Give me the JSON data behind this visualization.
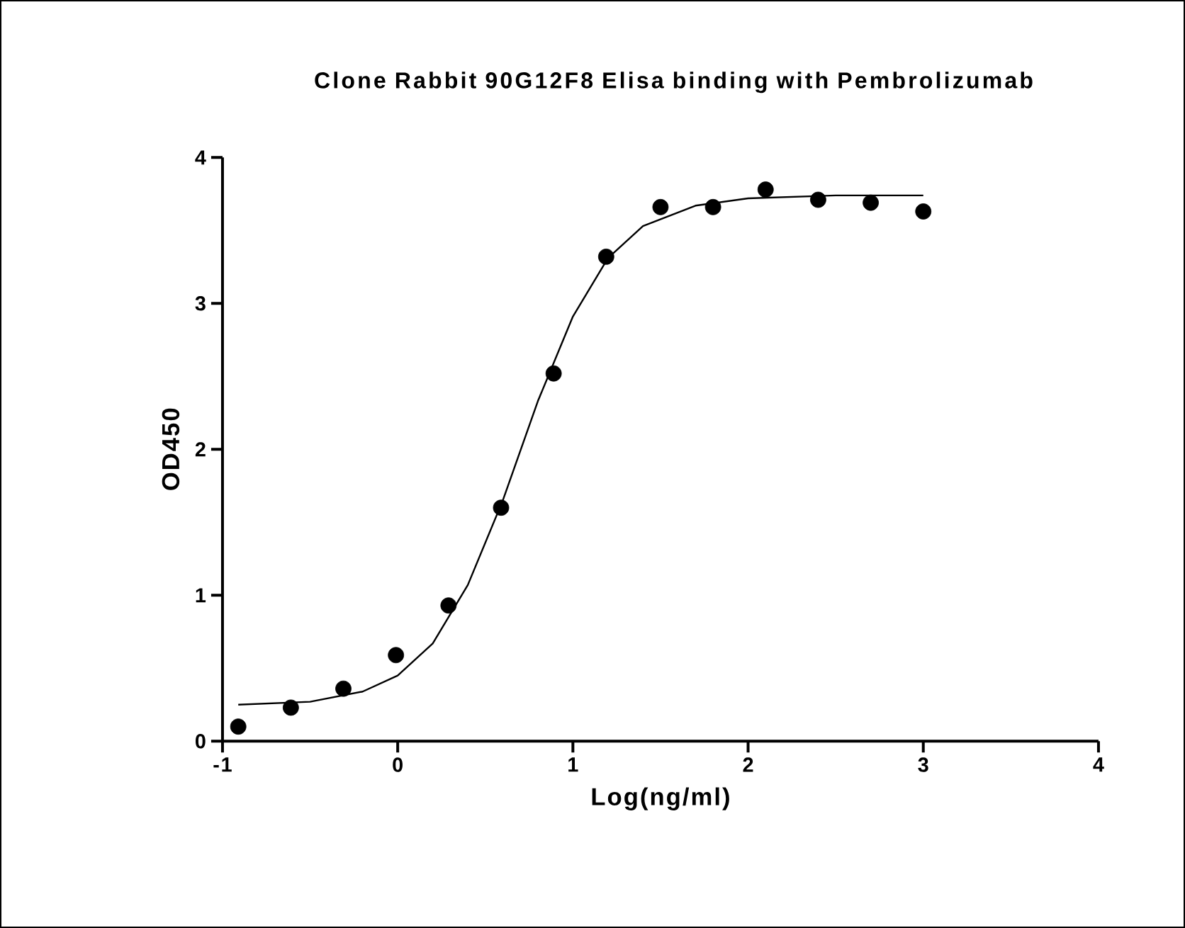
{
  "chart_data": {
    "type": "scatter",
    "title": "Clone Rabbit 90G12F8 Elisa binding with Pembrolizumab",
    "xlabel": "Log(ng/ml)",
    "ylabel": "OD450",
    "xlim": [
      -1,
      4
    ],
    "xticks": [
      -1,
      0,
      1,
      2,
      3,
      4
    ],
    "ylim": [
      0,
      4
    ],
    "yticks": [
      0,
      1,
      2,
      3,
      4
    ],
    "grid": false,
    "legend": false,
    "series": [
      {
        "color": "#000000",
        "marker": "circle",
        "x": [
          -0.91,
          -0.61,
          -0.31,
          -0.01,
          0.29,
          0.59,
          0.89,
          1.19,
          1.5,
          1.8,
          2.1,
          2.4,
          2.7,
          3.0
        ],
        "values": [
          0.1,
          0.23,
          0.36,
          0.59,
          0.93,
          1.6,
          2.52,
          3.32,
          3.66,
          3.66,
          3.78,
          3.71,
          3.69,
          3.63
        ]
      },
      {
        "type": "line",
        "color": "#000000",
        "marker": "none",
        "line_style": "solid",
        "x": [
          -0.91,
          -0.5,
          -0.2,
          0,
          0.2,
          0.4,
          0.6,
          0.8,
          1.0,
          1.2,
          1.4,
          1.7,
          2.0,
          2.5,
          3.0
        ],
        "values": [
          0.25,
          0.27,
          0.34,
          0.45,
          0.67,
          1.07,
          1.65,
          2.33,
          2.91,
          3.31,
          3.53,
          3.67,
          3.72,
          3.74,
          3.74
        ]
      }
    ]
  }
}
